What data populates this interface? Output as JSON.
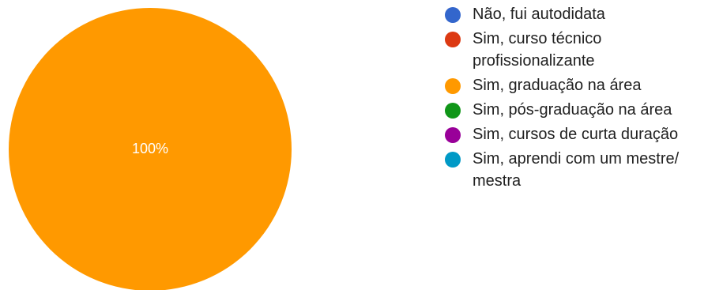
{
  "chart_data": {
    "type": "pie",
    "title": "",
    "legend_position": "right",
    "slices": [
      {
        "label": "Não, fui autodidata",
        "value": 0,
        "color": "#3366cc"
      },
      {
        "label": "Sim, curso técnico profissionalizante",
        "value": 0,
        "color": "#dc3912"
      },
      {
        "label": "Sim, graduação na área",
        "value": 100,
        "color": "#ff9900"
      },
      {
        "label": "Sim, pós-graduação na área",
        "value": 0,
        "color": "#109618"
      },
      {
        "label": "Sim, cursos de curta duração",
        "value": 0,
        "color": "#990099"
      },
      {
        "label": "Sim, aprendi com um mestre/ mestra",
        "value": 0,
        "color": "#0099c6"
      }
    ],
    "data_labels": [
      {
        "slice": 2,
        "text": "100%"
      }
    ]
  }
}
